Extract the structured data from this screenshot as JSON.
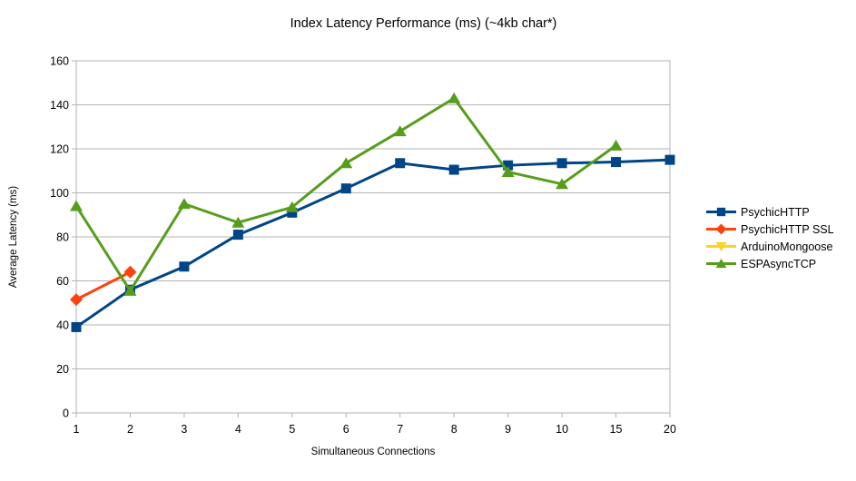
{
  "chart_data": {
    "type": "line",
    "title": "Index Latency Performance (ms) (~4kb char*)",
    "xlabel": "Simultaneous Connections",
    "ylabel": "Average Latency (ms)",
    "categories": [
      "1",
      "2",
      "3",
      "4",
      "5",
      "6",
      "7",
      "8",
      "9",
      "10",
      "15",
      "20"
    ],
    "yticks": [
      0,
      20,
      40,
      60,
      80,
      100,
      120,
      140,
      160
    ],
    "ylim": [
      0,
      160
    ],
    "grid": "horizontal-only",
    "legend_position": "right",
    "axis_color": "#b3b3b3",
    "text_color": "#000000",
    "background_color": "#ffffff",
    "series": [
      {
        "name": "PsychicHTTP",
        "color": "#004586",
        "marker": "square",
        "values": [
          39,
          56,
          66.5,
          81,
          91,
          102,
          113.5,
          110.5,
          112.5,
          113.5,
          114,
          115
        ]
      },
      {
        "name": "PsychicHTTP SSL",
        "color": "#FF420E",
        "marker": "diamond",
        "values": [
          51.5,
          64,
          null,
          null,
          null,
          null,
          null,
          null,
          null,
          null,
          null,
          null
        ]
      },
      {
        "name": "ArduinoMongoose",
        "color": "#FFD320",
        "marker": "triangle-down",
        "values": [
          null,
          null,
          null,
          null,
          null,
          null,
          null,
          null,
          null,
          null,
          null,
          null
        ]
      },
      {
        "name": "ESPAsyncTCP",
        "color": "#579D1C",
        "marker": "triangle-up",
        "values": [
          94,
          55.5,
          95,
          86.5,
          93.5,
          113.5,
          128,
          143,
          109.5,
          104,
          121.5,
          null
        ]
      }
    ]
  }
}
